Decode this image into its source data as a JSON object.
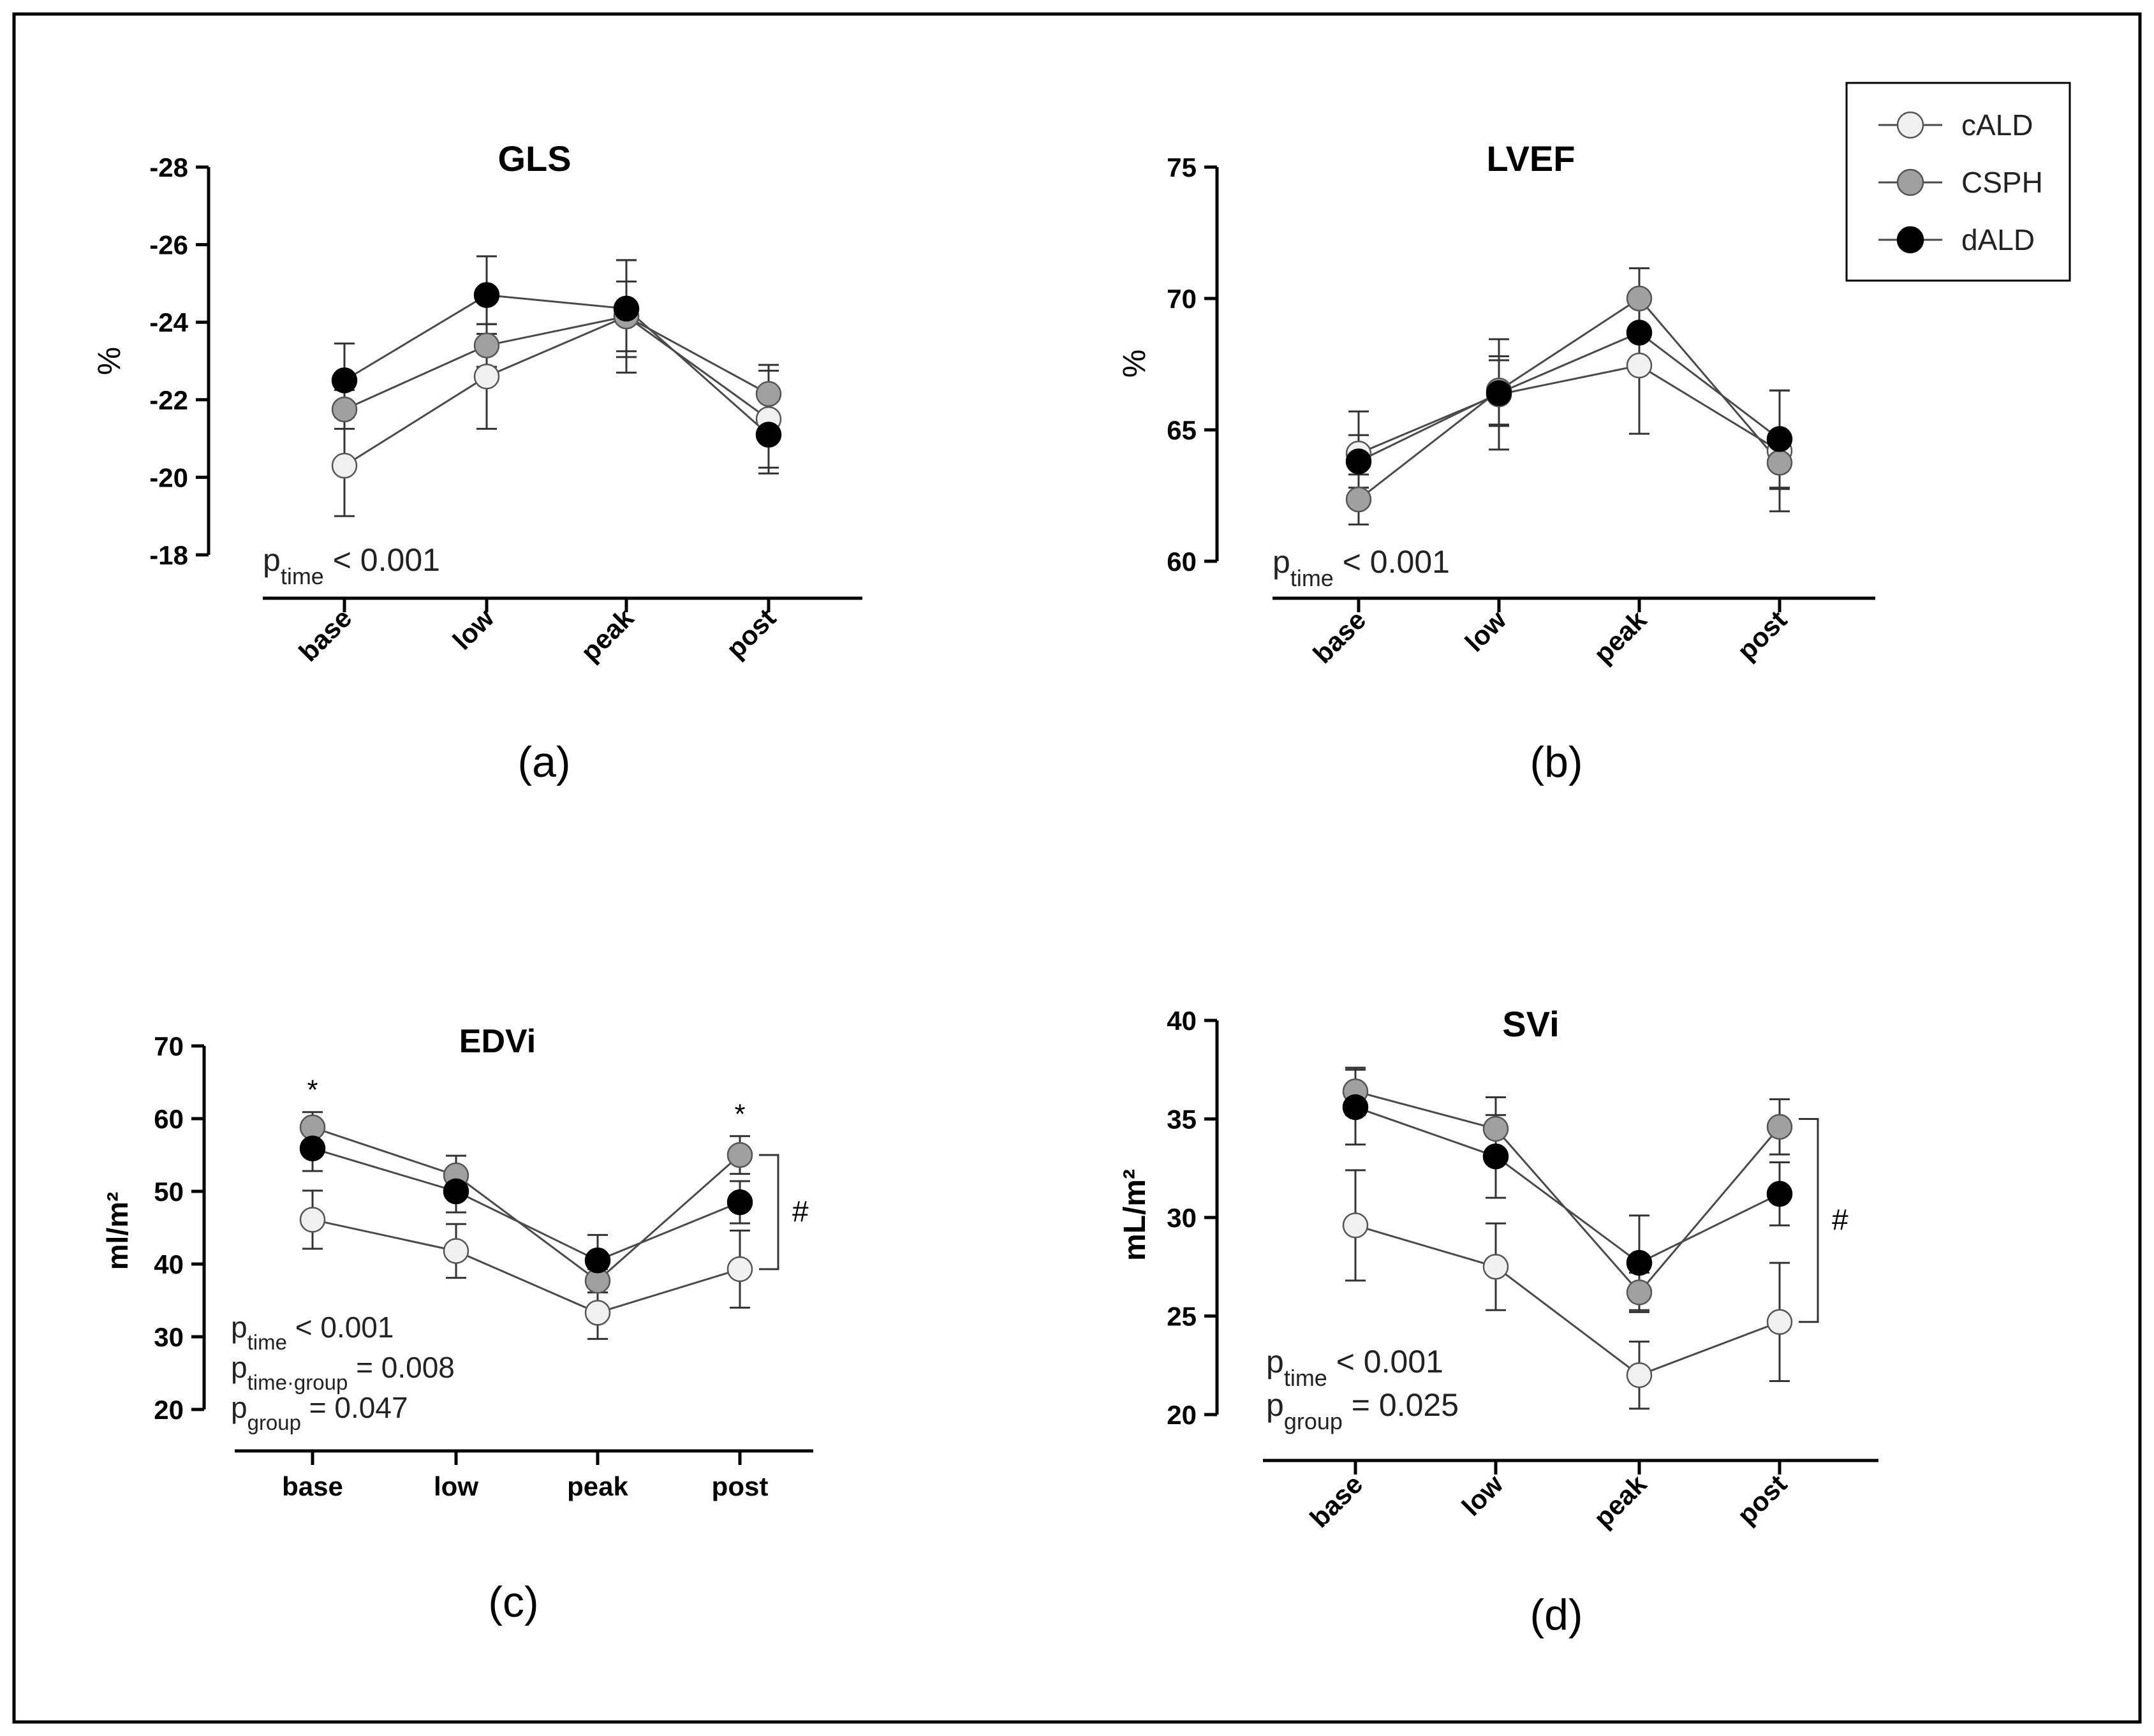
{
  "colors": {
    "cALD": "#f0f0f0",
    "CSPH": "#a0a0a0",
    "dALD": "#000000",
    "line": "#4a4a4a",
    "frame": "#000000"
  },
  "legend": {
    "entries": [
      {
        "label": "cALD",
        "color": "#f0f0f0"
      },
      {
        "label": "CSPH",
        "color": "#a0a0a0"
      },
      {
        "label": "dALD",
        "color": "#000000"
      }
    ]
  },
  "chart_data": [
    {
      "id": "a",
      "type": "line",
      "title": "GLS",
      "panel_label": "(a)",
      "ylabel": "%",
      "categories": [
        "base",
        "low",
        "peak",
        "post"
      ],
      "ylim": [
        -18,
        -28
      ],
      "yticks": [
        -28,
        -26,
        -24,
        -22,
        -20,
        -18
      ],
      "tick_labels": [
        "-28",
        "-26",
        "-24",
        "-22",
        "-20",
        "-18"
      ],
      "xtick_rotated": true,
      "series": [
        {
          "name": "cALD",
          "values": [
            -20.3,
            -22.6,
            -24.15,
            -21.5
          ],
          "err": [
            1.3,
            1.35,
            1.45,
            1.25
          ]
        },
        {
          "name": "CSPH",
          "values": [
            -21.75,
            -23.4,
            -24.15,
            -22.15
          ],
          "err": [
            0.5,
            0.55,
            0.9,
            0.75
          ]
        },
        {
          "name": "dALD",
          "values": [
            -22.5,
            -24.7,
            -24.35,
            -21.1
          ],
          "err": [
            0.95,
            1.0,
            1.25,
            1.0
          ]
        }
      ],
      "stats": [
        {
          "main": "p",
          "sub": "time",
          "rest": " < 0.001"
        }
      ]
    },
    {
      "id": "b",
      "type": "line",
      "title": "LVEF",
      "panel_label": "(b)",
      "ylabel": "%",
      "categories": [
        "base",
        "low",
        "peak",
        "post"
      ],
      "ylim": [
        60,
        75
      ],
      "yticks": [
        60,
        65,
        70,
        75
      ],
      "tick_labels": [
        "60",
        "65",
        "70",
        "75"
      ],
      "xtick_rotated": true,
      "series": [
        {
          "name": "cALD",
          "values": [
            64.1,
            66.35,
            67.45,
            64.2
          ],
          "err": [
            1.6,
            2.1,
            2.6,
            2.3
          ]
        },
        {
          "name": "CSPH",
          "values": [
            62.35,
            66.5,
            70.0,
            63.75
          ],
          "err": [
            0.95,
            1.3,
            1.15,
            1.0
          ]
        },
        {
          "name": "dALD",
          "values": [
            63.8,
            66.4,
            68.7,
            64.65
          ],
          "err": [
            1.0,
            1.25,
            1.45,
            1.85
          ]
        }
      ],
      "stats": [
        {
          "main": "p",
          "sub": "time",
          "rest": " < 0.001"
        }
      ]
    },
    {
      "id": "c",
      "type": "line",
      "title": "EDVi",
      "panel_label": "(c)",
      "ylabel": "ml/m²",
      "categories": [
        "base",
        "low",
        "peak",
        "post"
      ],
      "ylim": [
        20,
        70
      ],
      "yticks": [
        20,
        30,
        40,
        50,
        60,
        70
      ],
      "tick_labels": [
        "20",
        "30",
        "40",
        "50",
        "60",
        "70"
      ],
      "xtick_rotated": false,
      "series": [
        {
          "name": "cALD",
          "values": [
            46.1,
            41.8,
            33.3,
            39.3
          ],
          "err": [
            4.0,
            3.7,
            3.6,
            5.3
          ]
        },
        {
          "name": "CSPH",
          "values": [
            58.8,
            52.2,
            37.7,
            55.0
          ],
          "err": [
            2.1,
            2.7,
            1.6,
            2.6
          ]
        },
        {
          "name": "dALD",
          "values": [
            55.9,
            50.0,
            40.5,
            48.5
          ],
          "err": [
            3.1,
            2.9,
            3.5,
            2.9
          ]
        }
      ],
      "annotations": {
        "stars": [
          "*",
          "*"
        ],
        "star_categories": [
          "base",
          "post"
        ],
        "bracket": "#",
        "bracket_range": [
          39.3,
          55.0
        ]
      },
      "stats": [
        {
          "main": "p",
          "sub": "time",
          "rest": " < 0.001"
        },
        {
          "main": "p",
          "sub": "time·group",
          "rest": " = 0.008"
        },
        {
          "main": "p",
          "sub": "group",
          "rest": " = 0.047"
        }
      ]
    },
    {
      "id": "d",
      "type": "line",
      "title": "SVi",
      "panel_label": "(d)",
      "ylabel": "mL/m²",
      "categories": [
        "base",
        "low",
        "peak",
        "post"
      ],
      "ylim": [
        20,
        40
      ],
      "yticks": [
        20,
        25,
        30,
        35,
        40
      ],
      "tick_labels": [
        "20",
        "25",
        "30",
        "35",
        "40"
      ],
      "xtick_rotated": true,
      "series": [
        {
          "name": "cALD",
          "values": [
            29.6,
            27.5,
            22.0,
            24.7
          ],
          "err": [
            2.8,
            2.2,
            1.7,
            3.0
          ]
        },
        {
          "name": "CSPH",
          "values": [
            36.4,
            34.5,
            26.2,
            34.6
          ],
          "err": [
            1.2,
            1.6,
            1.0,
            1.4
          ]
        },
        {
          "name": "dALD",
          "values": [
            35.6,
            33.1,
            27.7,
            31.2
          ],
          "err": [
            1.9,
            2.1,
            2.4,
            1.6
          ]
        }
      ],
      "annotations": {
        "bracket": "#",
        "bracket_range": [
          24.7,
          35.0
        ]
      },
      "stats": [
        {
          "main": "p",
          "sub": "time",
          "rest": " < 0.001"
        },
        {
          "main": "p",
          "sub": "group",
          "rest": " = 0.025"
        }
      ]
    }
  ]
}
